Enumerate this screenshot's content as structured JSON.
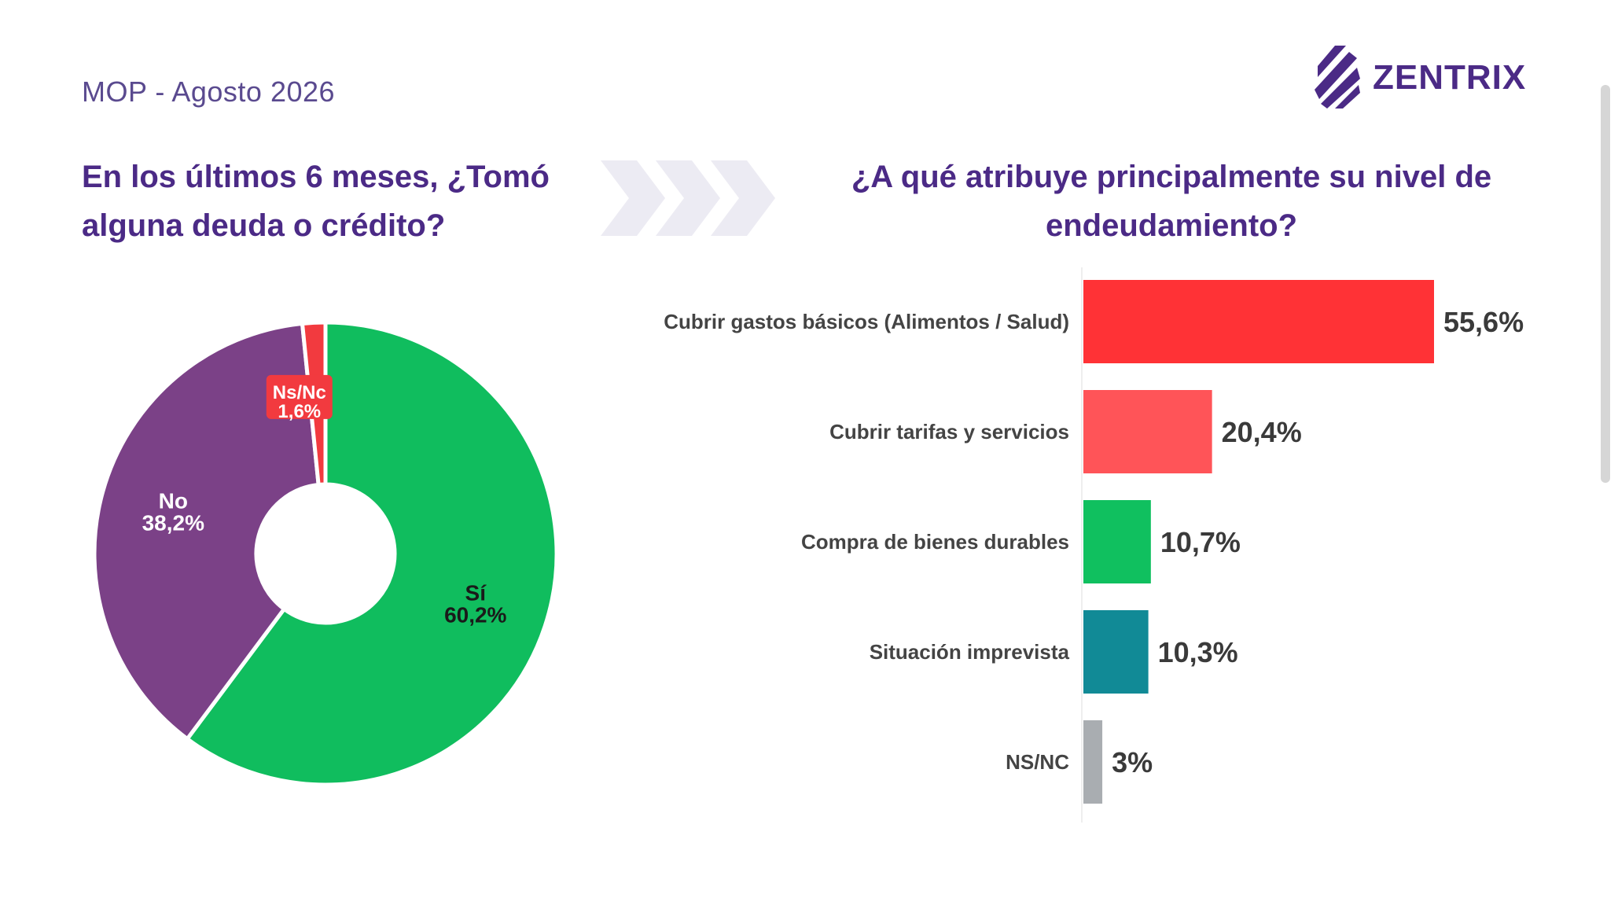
{
  "header": {
    "survey_label": "MOP - Agosto 2026",
    "logo_text": "ZENTRIX",
    "logo_icon": "zentrix-stripes-logo"
  },
  "questions": {
    "left": "En los últimos 6 meses, ¿Tomó alguna deuda o crédito?",
    "right": "¿A qué atribuye principalmente su nivel de endeudamiento?"
  },
  "colors": {
    "title": "#4b2a86",
    "si": "#10bd5e",
    "no": "#7b4187",
    "nsnc_pie": "#f23a3f",
    "arrows": "#ecebf3"
  },
  "chart_data": [
    {
      "type": "pie",
      "donut": true,
      "title": "",
      "slices": [
        {
          "label": "Sí",
          "value": 60.2,
          "value_label": "60,2%",
          "color": "#10bd5e",
          "text_color": "#1a1a1a"
        },
        {
          "label": "No",
          "value": 38.2,
          "value_label": "38,2%",
          "color": "#7b4187",
          "text_color": "#ffffff"
        },
        {
          "label": "Ns/Nc",
          "value": 1.6,
          "value_label": "1,6%",
          "color": "#f23a3f",
          "text_color": "#ffffff"
        }
      ]
    },
    {
      "type": "bar",
      "orientation": "horizontal",
      "title": "",
      "categories": [
        "Cubrir gastos básicos (Alimentos / Salud)",
        "Cubrir tarifas y servicios",
        "Compra de bienes durables",
        "Situación imprevista",
        "NS/NC"
      ],
      "values": [
        55.6,
        20.4,
        10.7,
        10.3,
        3
      ],
      "value_labels": [
        "55,6%",
        "20,4%",
        "10,7%",
        "10,3%",
        "3%"
      ],
      "colors": [
        "#ff3236",
        "#ff5458",
        "#10c05f",
        "#118a96",
        "#a9adb1"
      ],
      "xlim": [
        0,
        55.6
      ]
    }
  ]
}
